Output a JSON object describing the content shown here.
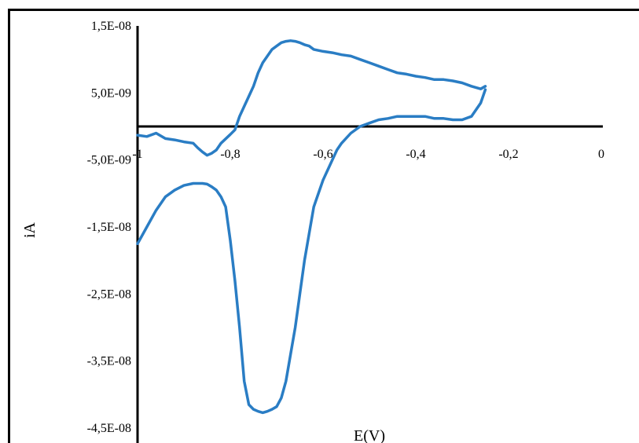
{
  "chart_data": {
    "type": "line",
    "xlabel": "E(V)",
    "ylabel": "iA",
    "xlim": [
      -1,
      0
    ],
    "ylim": [
      -4.5e-08,
      1.5e-08
    ],
    "x_ticks": [
      -1,
      -0.8,
      -0.6,
      -0.4,
      -0.2,
      0
    ],
    "x_tick_labels": [
      "-1",
      "-0,8",
      "-0,6",
      "-0,4",
      "-0,2",
      "0"
    ],
    "y_ticks": [
      1.5e-08,
      5e-09,
      -5e-09,
      -1.5e-08,
      -2.5e-08,
      -3.5e-08,
      -4.5e-08
    ],
    "y_tick_labels": [
      "1,5E-08",
      "5,0E-09",
      "-5,0E-09",
      "-1,5E-08",
      "-2,5E-08",
      "-3,5E-08",
      "-4,5E-08"
    ],
    "grid": false,
    "series_color": "#2a7dc4",
    "series": [
      {
        "x": [
          -1.0,
          -0.98,
          -0.96,
          -0.94,
          -0.92,
          -0.9,
          -0.88,
          -0.87,
          -0.86,
          -0.85,
          -0.84,
          -0.83,
          -0.82,
          -0.8,
          -0.79,
          -0.78,
          -0.77,
          -0.76,
          -0.75,
          -0.74,
          -0.73,
          -0.72,
          -0.71,
          -0.7,
          -0.69,
          -0.68,
          -0.67,
          -0.66,
          -0.65,
          -0.64,
          -0.63,
          -0.62,
          -0.6,
          -0.58,
          -0.56,
          -0.54,
          -0.52,
          -0.5,
          -0.48,
          -0.46,
          -0.44,
          -0.42,
          -0.4,
          -0.38,
          -0.36,
          -0.34,
          -0.32,
          -0.3,
          -0.28,
          -0.26,
          -0.25
        ],
        "y": [
          -1.3e-09,
          -1.5e-09,
          -1e-09,
          -1.8e-09,
          -2e-09,
          -2.3e-09,
          -2.5e-09,
          -3.2e-09,
          -3.8e-09,
          -4.3e-09,
          -4e-09,
          -3.5e-09,
          -2.5e-09,
          -1.2e-09,
          -5e-10,
          1.5e-09,
          3e-09,
          4.5e-09,
          6e-09,
          8e-09,
          9.5e-09,
          1.05e-08,
          1.15e-08,
          1.2e-08,
          1.25e-08,
          1.27e-08,
          1.28e-08,
          1.27e-08,
          1.25e-08,
          1.22e-08,
          1.2e-08,
          1.15e-08,
          1.12e-08,
          1.1e-08,
          1.07e-08,
          1.05e-08,
          1e-08,
          9.5e-09,
          9e-09,
          8.5e-09,
          8e-09,
          7.8e-09,
          7.5e-09,
          7.3e-09,
          7e-09,
          7e-09,
          6.8e-09,
          6.5e-09,
          6e-09,
          5.6e-09,
          6e-09
        ]
      },
      {
        "x": [
          -0.25,
          -0.26,
          -0.28,
          -0.3,
          -0.32,
          -0.34,
          -0.36,
          -0.38,
          -0.4,
          -0.42,
          -0.44,
          -0.46,
          -0.48,
          -0.5,
          -0.52,
          -0.54,
          -0.56,
          -0.57,
          -0.58,
          -0.59,
          -0.6,
          -0.61,
          -0.62,
          -0.63,
          -0.64,
          -0.65,
          -0.66,
          -0.67,
          -0.68,
          -0.69,
          -0.7,
          -0.71,
          -0.72,
          -0.73,
          -0.74,
          -0.75,
          -0.76,
          -0.77,
          -0.78,
          -0.79,
          -0.8,
          -0.81,
          -0.82,
          -0.83,
          -0.84,
          -0.85,
          -0.86,
          -0.88,
          -0.9,
          -0.92,
          -0.94,
          -0.96,
          -0.98,
          -1.0
        ],
        "y": [
          5.5e-09,
          3.5e-09,
          1.5e-09,
          1e-09,
          1e-09,
          1.2e-09,
          1.2e-09,
          1.5e-09,
          1.5e-09,
          1.5e-09,
          1.5e-09,
          1.2e-09,
          1e-09,
          5e-10,
          0.0,
          -1e-09,
          -2.5e-09,
          -3.5e-09,
          -5e-09,
          -6.5e-09,
          -8e-09,
          -1e-08,
          -1.2e-08,
          -1.6e-08,
          -2e-08,
          -2.5e-08,
          -3e-08,
          -3.4e-08,
          -3.8e-08,
          -4.05e-08,
          -4.18e-08,
          -4.22e-08,
          -4.25e-08,
          -4.27e-08,
          -4.25e-08,
          -4.22e-08,
          -4.15e-08,
          -3.8e-08,
          -3e-08,
          -2.3e-08,
          -1.7e-08,
          -1.2e-08,
          -1.05e-08,
          -9.5e-09,
          -9e-09,
          -8.6e-09,
          -8.5e-09,
          -8.5e-09,
          -8.8e-09,
          -9.5e-09,
          -1.05e-08,
          -1.25e-08,
          -1.5e-08,
          -1.75e-08
        ]
      }
    ]
  }
}
